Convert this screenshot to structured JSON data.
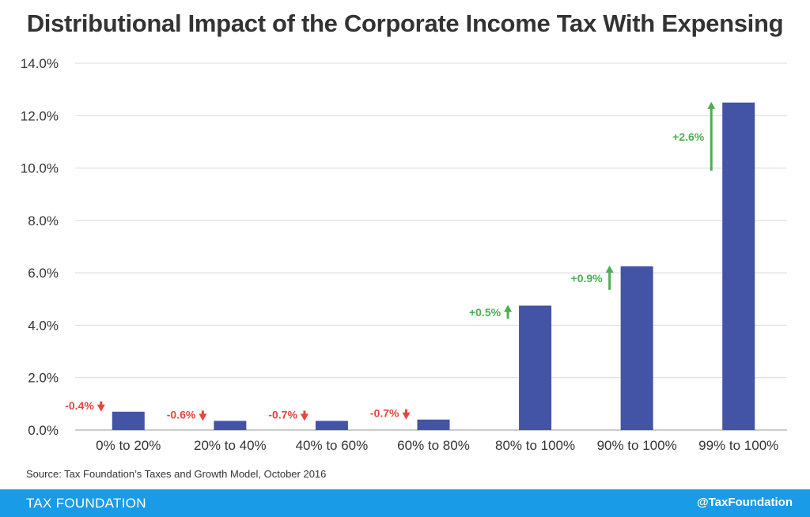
{
  "title": "Distributional Impact of the Corporate Income Tax With Expensing",
  "source": "Source: Tax Foundation’s Taxes and Growth Model, October 2016",
  "footer": {
    "brand": "TAX FOUNDATION",
    "handle": "@TaxFoundation"
  },
  "colors": {
    "bar": "#4353a5",
    "increase": "#4caf50",
    "decrease": "#e8453c",
    "footer": "#1a9be8"
  },
  "chart_data": {
    "type": "bar",
    "title": "Distributional Impact of the Corporate Income Tax With Expensing",
    "categories": [
      "0% to 20%",
      "20% to 40%",
      "40% to 60%",
      "60% to 80%",
      "80% to 100%",
      "90% to 100%",
      "99% to 100%"
    ],
    "values": [
      0.7,
      0.35,
      0.35,
      0.4,
      4.75,
      6.25,
      12.5
    ],
    "changes": [
      {
        "label": "-0.4%",
        "direction": "down",
        "value": -0.4
      },
      {
        "label": "-0.6%",
        "direction": "down",
        "value": -0.6
      },
      {
        "label": "-0.7%",
        "direction": "down",
        "value": -0.7
      },
      {
        "label": "-0.7%",
        "direction": "down",
        "value": -0.7
      },
      {
        "label": "+0.5%",
        "direction": "up",
        "value": 0.5
      },
      {
        "label": "+0.9%",
        "direction": "up",
        "value": 0.9
      },
      {
        "label": "+2.6%",
        "direction": "up",
        "value": 2.6
      }
    ],
    "yticks": [
      "0.0%",
      "2.0%",
      "4.0%",
      "6.0%",
      "8.0%",
      "10.0%",
      "12.0%",
      "14.0%"
    ],
    "ylim": [
      0,
      14
    ],
    "xlabel": "",
    "ylabel": "",
    "grid": true
  }
}
